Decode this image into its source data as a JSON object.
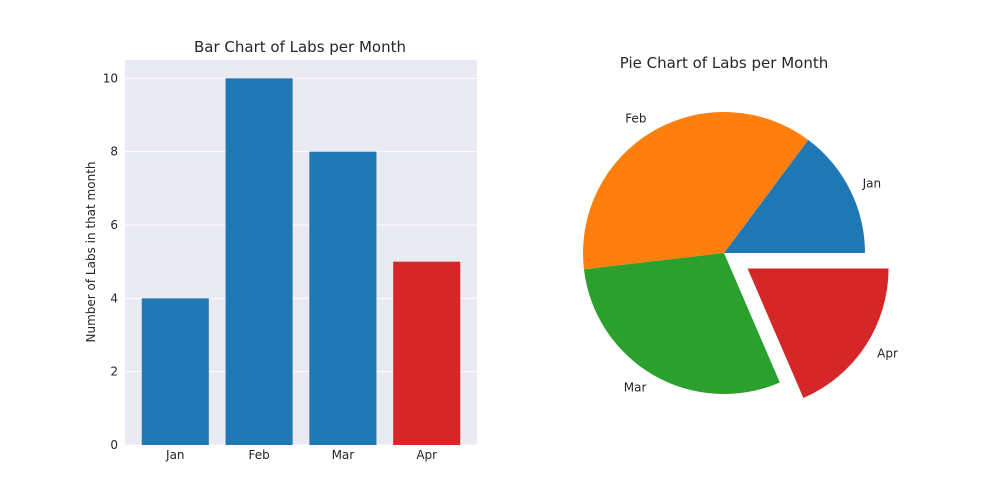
{
  "chart_data": [
    {
      "type": "bar",
      "title": "Bar Chart of Labs per Month",
      "categories": [
        "Jan",
        "Feb",
        "Mar",
        "Apr"
      ],
      "values": [
        4,
        10,
        8,
        5
      ],
      "colors": [
        "#1f77b4",
        "#1f77b4",
        "#1f77b4",
        "#d62728"
      ],
      "xlabel": "",
      "ylabel": "Number of Labs in that month",
      "ylim": [
        0,
        10.5
      ],
      "yticks": [
        0,
        2,
        4,
        6,
        8,
        10
      ],
      "grid": true,
      "background": "#eaeaf2"
    },
    {
      "type": "pie",
      "title": "Pie Chart of Labs per Month",
      "labels": [
        "Jan",
        "Feb",
        "Mar",
        "Apr"
      ],
      "values": [
        4,
        10,
        8,
        5
      ],
      "colors": [
        "#1f77b4",
        "#ff7f0e",
        "#2ca02c",
        "#d62728"
      ],
      "explode": [
        0,
        0,
        0,
        0.2
      ],
      "start_angle": 0,
      "direction": "counterclockwise"
    }
  ]
}
